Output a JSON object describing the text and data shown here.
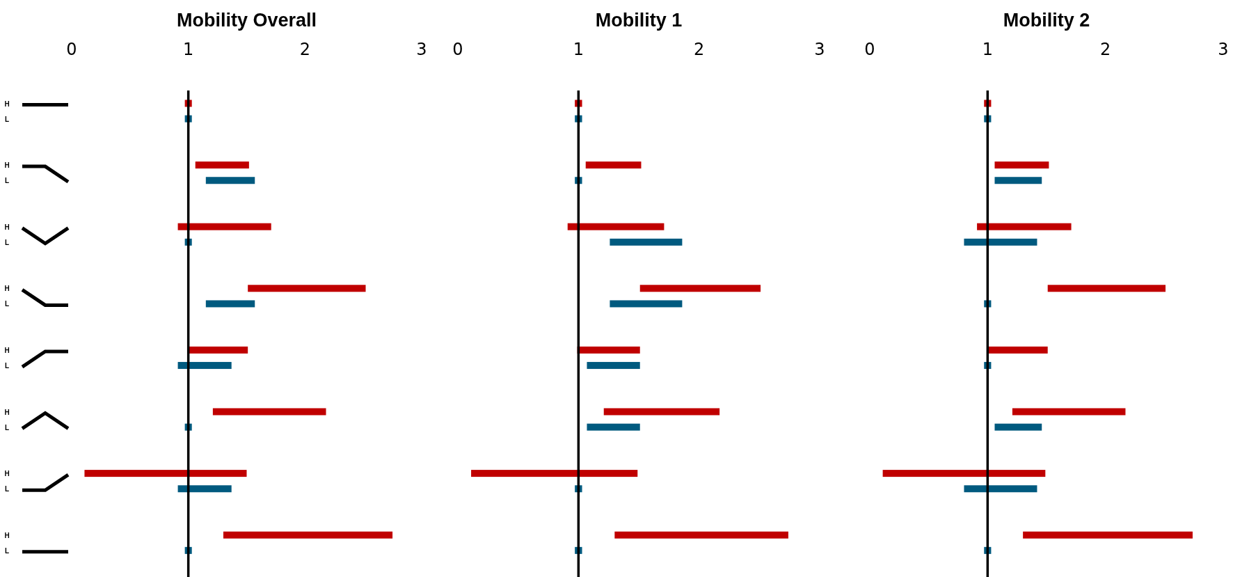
{
  "chart_data": [
    {
      "type": "bar",
      "orientation": "horizontal",
      "title": "Mobility Overall",
      "categories": [
        "H",
        "L",
        null,
        null,
        "H",
        "L",
        null,
        null,
        "H",
        "L",
        null,
        null,
        "H",
        "L",
        null,
        null,
        "H",
        "L",
        null,
        null,
        "H",
        "L",
        null,
        null,
        "H",
        "L",
        null,
        null,
        "H",
        "L"
      ],
      "base": [
        0.97,
        0.97,
        null,
        null,
        1.06,
        1.15,
        null,
        null,
        0.91,
        0.97,
        null,
        null,
        1.51,
        1.15,
        null,
        null,
        1.0,
        0.91,
        null,
        null,
        1.21,
        0.97,
        null,
        null,
        0.11,
        0.91,
        null,
        null,
        1.3,
        0.97
      ],
      "values": [
        0.06,
        0.06,
        null,
        null,
        0.46,
        0.42,
        null,
        null,
        0.8,
        0.06,
        null,
        null,
        1.01,
        0.42,
        null,
        null,
        0.51,
        0.46,
        null,
        null,
        0.97,
        0.06,
        null,
        null,
        1.39,
        0.46,
        null,
        null,
        1.45,
        0.06
      ],
      "colors": [
        "#c00000",
        "#005a7f",
        null,
        null,
        "#c00000",
        "#005a7f",
        null,
        null,
        "#c00000",
        "#005a7f",
        null,
        null,
        "#c00000",
        "#005a7f",
        null,
        null,
        "#c00000",
        "#005a7f",
        null,
        null,
        "#c00000",
        "#005a7f",
        null,
        null,
        "#c00000",
        "#005a7f",
        null,
        null,
        "#c00000",
        "#005a7f"
      ],
      "xlim": [
        0,
        3
      ],
      "xticks": [
        0,
        1,
        2,
        3
      ],
      "ref_lines": [
        {
          "axis": "x",
          "value": 1,
          "color": "#000000"
        }
      ]
    },
    {
      "type": "bar",
      "orientation": "horizontal",
      "title": "Mobility 1",
      "categories": [
        null,
        null,
        null,
        null,
        null,
        null,
        null,
        null,
        null,
        null,
        null,
        null,
        null,
        null,
        null,
        null,
        null,
        null,
        null,
        null,
        null,
        null,
        null,
        null,
        null,
        null,
        null,
        null,
        null,
        null
      ],
      "base": [
        0.97,
        0.97,
        null,
        null,
        1.06,
        0.97,
        null,
        null,
        0.91,
        1.26,
        null,
        null,
        1.51,
        1.26,
        null,
        null,
        0.99,
        1.07,
        null,
        null,
        1.21,
        1.07,
        null,
        null,
        0.11,
        0.97,
        null,
        null,
        1.3,
        0.97
      ],
      "values": [
        0.06,
        0.06,
        null,
        null,
        0.46,
        0.06,
        null,
        null,
        0.8,
        0.6,
        null,
        null,
        1.0,
        0.6,
        null,
        null,
        0.52,
        0.44,
        null,
        null,
        0.96,
        0.44,
        null,
        null,
        1.38,
        0.06,
        null,
        null,
        1.44,
        0.06
      ],
      "colors": [
        "#c00000",
        "#005a7f",
        null,
        null,
        "#c00000",
        "#005a7f",
        null,
        null,
        "#c00000",
        "#005a7f",
        null,
        null,
        "#c00000",
        "#005a7f",
        null,
        null,
        "#c00000",
        "#005a7f",
        null,
        null,
        "#c00000",
        "#005a7f",
        null,
        null,
        "#c00000",
        "#005a7f",
        null,
        null,
        "#c00000",
        "#005a7f"
      ],
      "xlim": [
        0,
        3
      ],
      "xticks": [
        0,
        1,
        2,
        3
      ],
      "tick_labels": "x",
      "ref_lines": [
        {
          "axis": "x",
          "value": 1,
          "color": "#000000"
        }
      ]
    },
    {
      "type": "bar",
      "orientation": "horizontal",
      "title": "Mobility 2",
      "categories": [
        null,
        null,
        null,
        null,
        null,
        null,
        null,
        null,
        null,
        null,
        null,
        null,
        null,
        null,
        null,
        null,
        null,
        null,
        null,
        null,
        null,
        null,
        null,
        null,
        null,
        null,
        null,
        null,
        null,
        null
      ],
      "base": [
        0.97,
        0.97,
        null,
        null,
        1.06,
        1.06,
        null,
        null,
        0.91,
        0.8,
        null,
        null,
        1.51,
        0.97,
        null,
        null,
        1.0,
        0.97,
        null,
        null,
        1.21,
        1.06,
        null,
        null,
        0.11,
        0.8,
        null,
        null,
        1.3,
        0.97
      ],
      "values": [
        0.06,
        0.06,
        null,
        null,
        0.46,
        0.4,
        null,
        null,
        0.8,
        0.62,
        null,
        null,
        1.0,
        0.06,
        null,
        null,
        0.51,
        0.06,
        null,
        null,
        0.96,
        0.4,
        null,
        null,
        1.38,
        0.62,
        null,
        null,
        1.44,
        0.06
      ],
      "colors": [
        "#c00000",
        "#005a7f",
        null,
        null,
        "#c00000",
        "#005a7f",
        null,
        null,
        "#c00000",
        "#005a7f",
        null,
        null,
        "#c00000",
        "#005a7f",
        null,
        null,
        "#c00000",
        "#005a7f",
        null,
        null,
        "#c00000",
        "#005a7f",
        null,
        null,
        "#c00000",
        "#005a7f",
        null,
        null,
        "#c00000",
        "#005a7f"
      ],
      "xlim": [
        0,
        3
      ],
      "xticks": [
        0,
        1,
        2,
        3
      ],
      "tick_labels": "x",
      "ref_lines": [
        {
          "axis": "x",
          "value": 1,
          "color": "#000000"
        }
      ]
    }
  ]
}
